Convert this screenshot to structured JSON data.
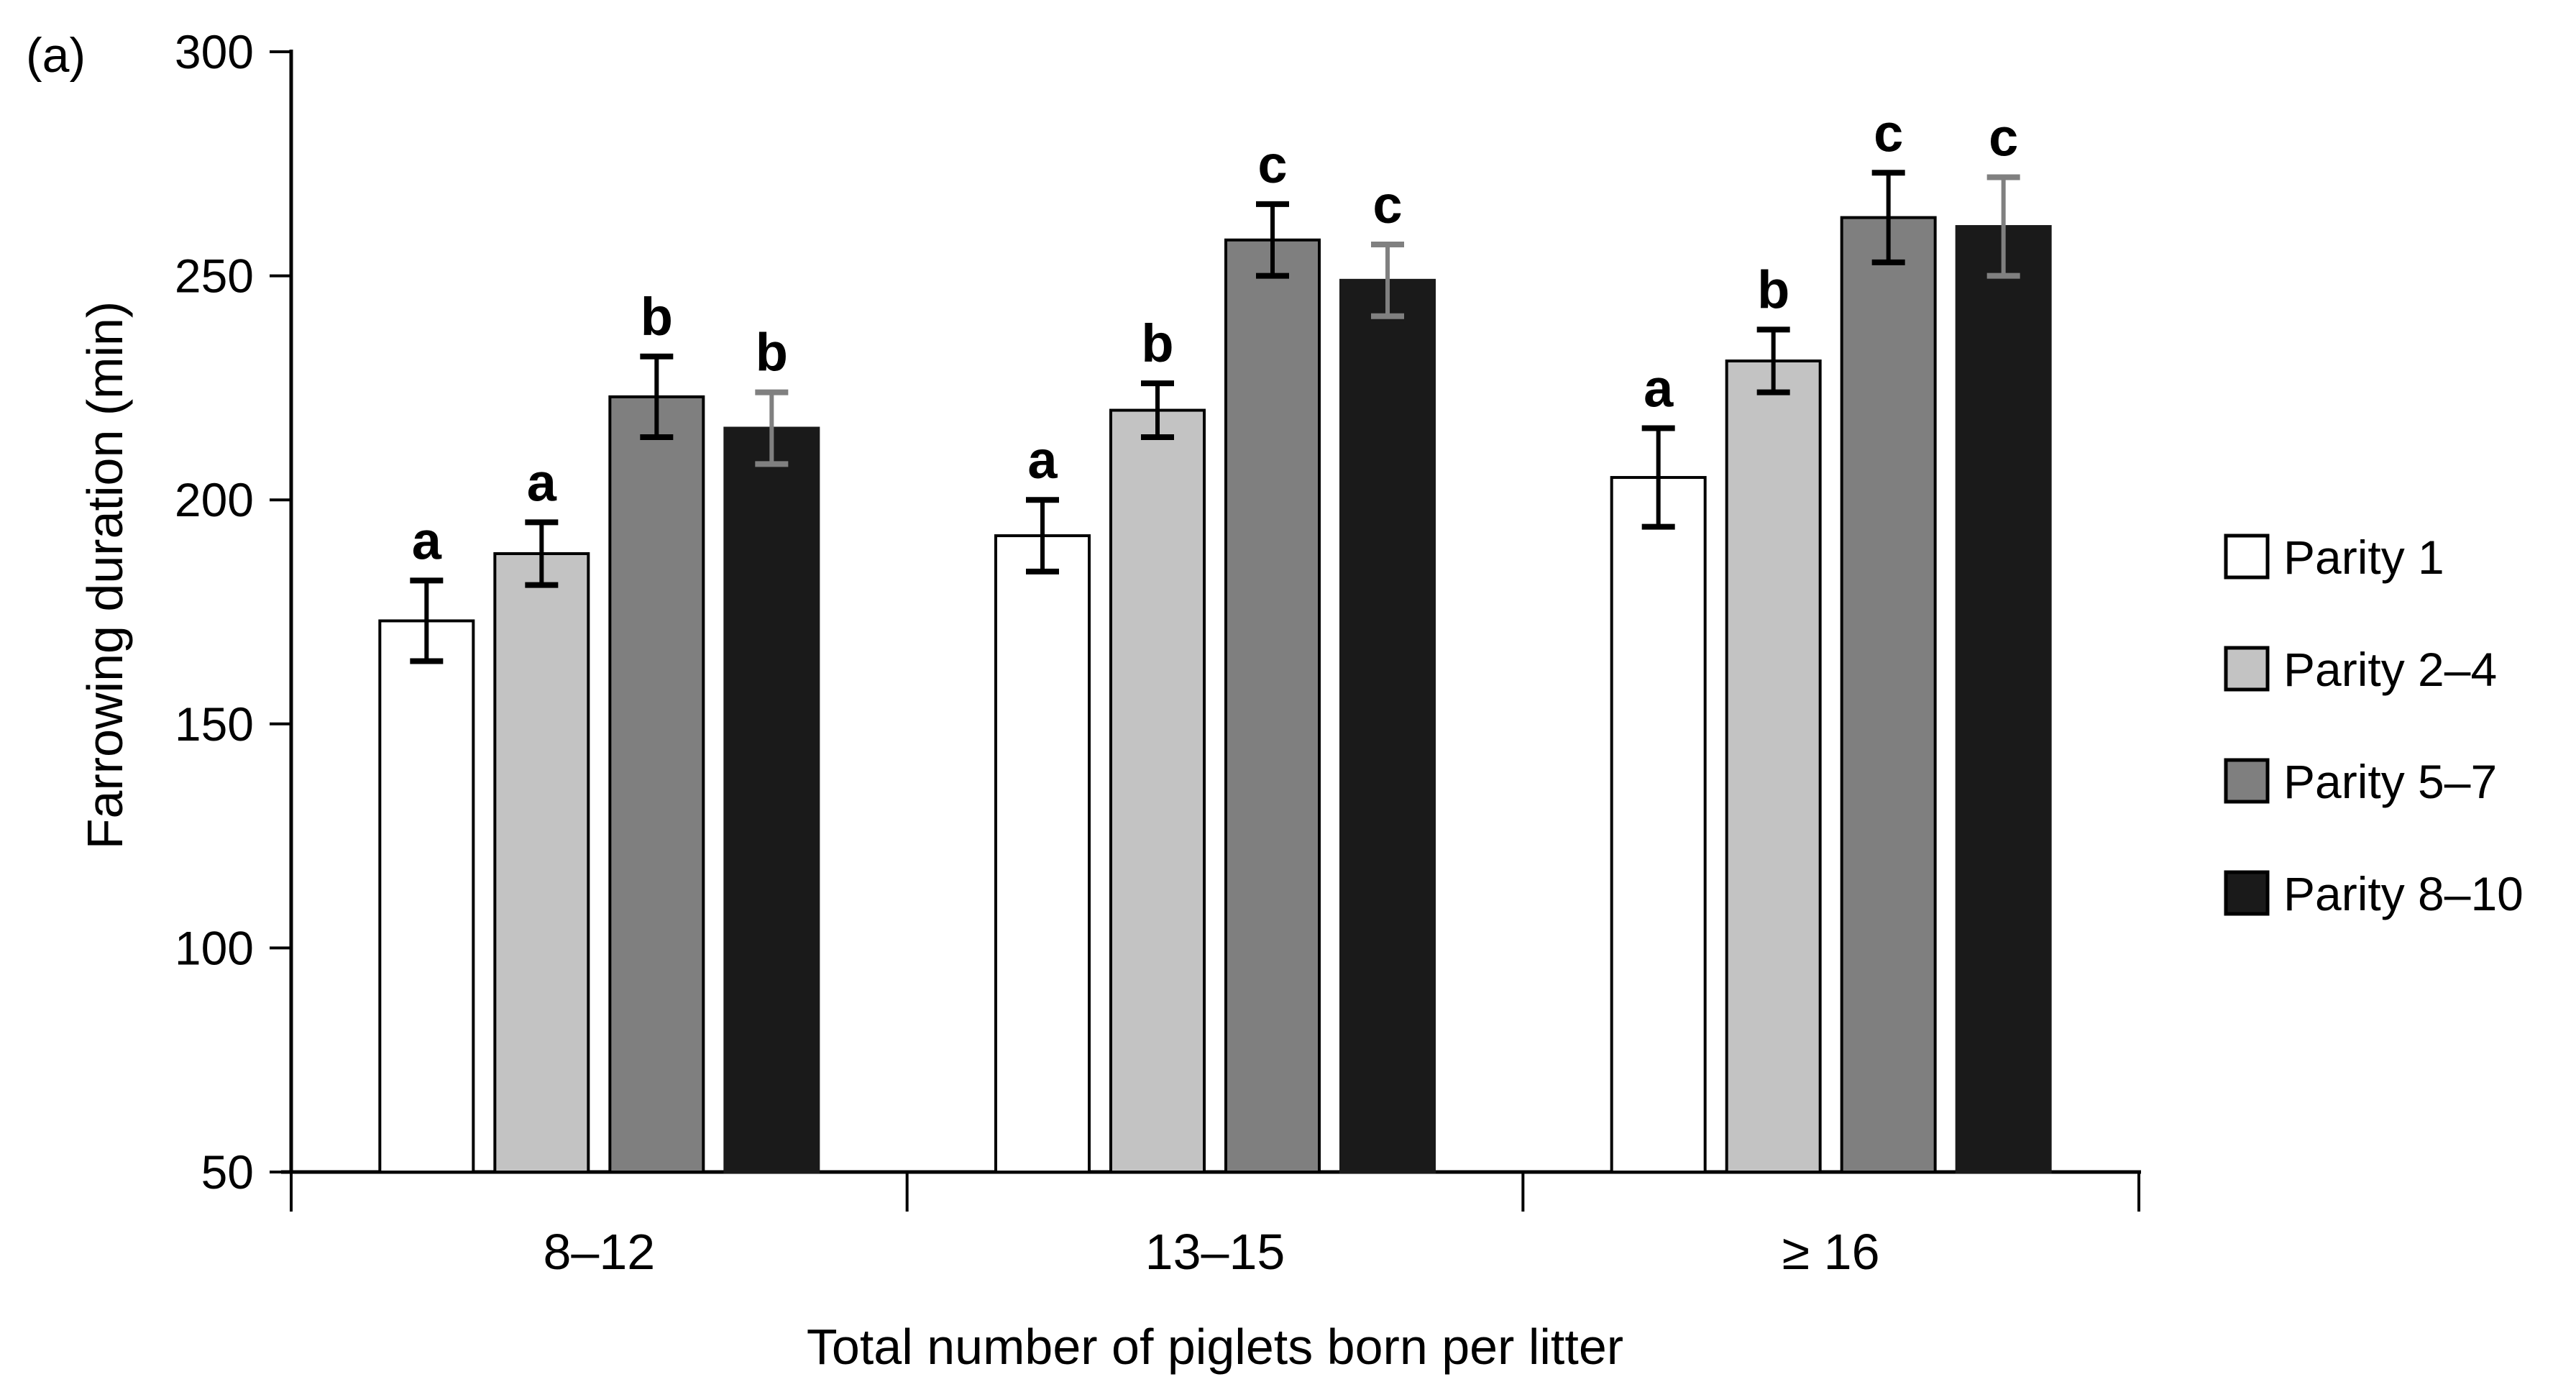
{
  "figure": {
    "panel_label": "(a)",
    "background": "#ffffff",
    "text_color": "#000000"
  },
  "chart_data": {
    "type": "bar",
    "title": "",
    "xlabel": "Total number of piglets born per litter",
    "ylabel": "Farrowing duration (min)",
    "ylim": [
      50,
      300
    ],
    "yticks": [
      50,
      100,
      150,
      200,
      250,
      300
    ],
    "categories": [
      "8–12",
      "13–15",
      "≥ 16"
    ],
    "grid": false,
    "legend_position": "right",
    "axis_color": "#000000",
    "series": [
      {
        "name": "Parity 1",
        "fill": "#ffffff",
        "stroke": "#000000",
        "error_color": "#000000",
        "values": [
          173,
          192,
          205
        ],
        "errors": [
          9,
          8,
          11
        ],
        "sig_letters": [
          "a",
          "a",
          "a"
        ]
      },
      {
        "name": "Parity 2–4",
        "fill": "#c3c3c3",
        "stroke": "#000000",
        "error_color": "#000000",
        "values": [
          188,
          220,
          231
        ],
        "errors": [
          7,
          6,
          7
        ],
        "sig_letters": [
          "a",
          "b",
          "b"
        ]
      },
      {
        "name": "Parity 5–7",
        "fill": "#7f7f7f",
        "stroke": "#000000",
        "error_color": "#000000",
        "values": [
          223,
          258,
          263
        ],
        "errors": [
          9,
          8,
          10
        ],
        "sig_letters": [
          "b",
          "c",
          "c"
        ]
      },
      {
        "name": "Parity 8–10",
        "fill": "#1a1a1a",
        "stroke": "#1a1a1a",
        "error_color": "#808080",
        "values": [
          216,
          249,
          261
        ],
        "errors": [
          8,
          8,
          11
        ],
        "sig_letters": [
          "b",
          "c",
          "c"
        ]
      }
    ]
  }
}
